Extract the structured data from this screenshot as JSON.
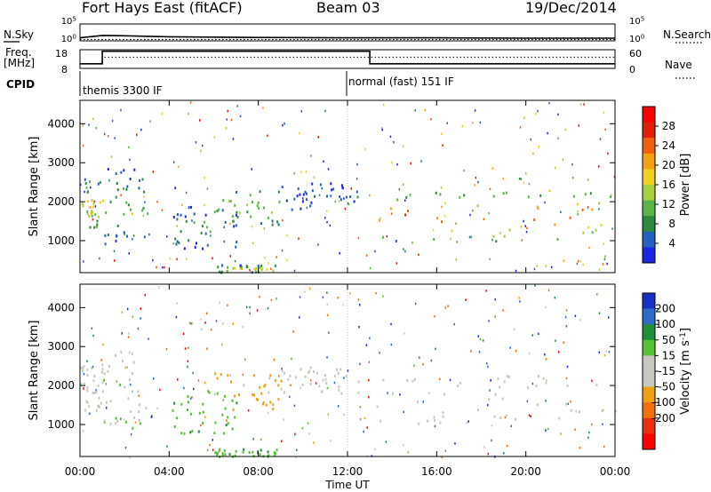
{
  "header": {
    "title": "Fort Hays East (fitACF)",
    "beam": "Beam 03",
    "date": "19/Dec/2014"
  },
  "chart_data": [
    {
      "type": "line",
      "name_left": "N.Sky",
      "name_right": "N.Search",
      "y_left_ticks": [
        "10^5",
        "10^0"
      ],
      "y_right_ticks": [
        "10^5",
        "10^0"
      ],
      "series": [
        {
          "name": "N.Sky",
          "style": "solid",
          "x_hours": [
            0,
            1,
            2,
            4,
            8,
            12,
            16,
            20,
            24
          ],
          "values_log10": [
            0.9,
            1.6,
            1.5,
            1.2,
            1.0,
            0.9,
            0.9,
            0.8,
            0.8
          ]
        },
        {
          "name": "N.Search",
          "style": "dotted",
          "x_hours": [
            0,
            24
          ],
          "values_log10": [
            0.4,
            0.4
          ]
        }
      ]
    },
    {
      "type": "line",
      "name_left": "Freq.",
      "unit_left": "[MHz]",
      "name_right": "Nave",
      "y_left_ticks": [
        18,
        8
      ],
      "y_right_ticks": [
        60,
        0
      ],
      "series": [
        {
          "name": "Freq.",
          "style": "solid",
          "x_hours": [
            0,
            1.0,
            1.0,
            13.0,
            13.0,
            24
          ],
          "values": [
            10.5,
            10.5,
            17.2,
            17.2,
            10.5,
            10.5
          ]
        },
        {
          "name": "Nave",
          "style": "dotted",
          "x_hours": [
            0,
            1.0,
            1.0,
            24
          ],
          "values": [
            18,
            18,
            14,
            14
          ]
        }
      ]
    },
    {
      "type": "table",
      "label": "CPID",
      "segments": [
        {
          "start_hour": 0,
          "label": "themis 3300 IF"
        },
        {
          "start_hour": 12,
          "label": "normal (fast) 151 IF"
        }
      ]
    },
    {
      "type": "heatmap",
      "ylabel": "Slant Range [km]",
      "ylim": [
        180,
        4600
      ],
      "y_ticks": [
        1000,
        2000,
        3000,
        4000
      ],
      "colorbar_label": "Power [dB]",
      "colorbar_ticks": [
        4,
        8,
        12,
        16,
        20,
        24,
        28
      ],
      "colorbar_range": [
        0,
        32
      ],
      "colorscale": [
        "#1c28e0",
        "#2460c0",
        "#2e8a3c",
        "#5cb448",
        "#a6d040",
        "#f0d020",
        "#f5a012",
        "#f06010",
        "#e02008",
        "#ff0000"
      ],
      "echo_regions": [
        {
          "h0": 0.0,
          "h1": 1.0,
          "r0": 1300,
          "r1": 2600,
          "value": 16
        },
        {
          "h0": 1.0,
          "h1": 3.0,
          "r0": 900,
          "r1": 2900,
          "value": 10
        },
        {
          "h0": 4.0,
          "h1": 7.0,
          "r0": 800,
          "r1": 1900,
          "value": 8
        },
        {
          "h0": 6.0,
          "h1": 9.0,
          "r0": 1400,
          "r1": 2400,
          "value": 12
        },
        {
          "h0": 6.0,
          "h1": 9.0,
          "r0": 200,
          "r1": 400,
          "value": 16
        },
        {
          "h0": 9.0,
          "h1": 12.5,
          "r0": 1800,
          "r1": 2500,
          "value": 4
        },
        {
          "h0": 13.0,
          "h1": 24.0,
          "r0": 1000,
          "r1": 2300,
          "value": 22
        }
      ]
    },
    {
      "type": "heatmap",
      "ylabel": "Slant Range [km]",
      "xlabel": "Time UT",
      "ylim": [
        180,
        4600
      ],
      "y_ticks": [
        1000,
        2000,
        3000,
        4000
      ],
      "x_ticks": [
        "00:00",
        "04:00",
        "08:00",
        "12:00",
        "16:00",
        "20:00",
        "00:00"
      ],
      "colorbar_label": "Velocity [m s^-1]",
      "colorbar_ticks": [
        200,
        100,
        50,
        15,
        -15,
        -50,
        -100,
        -200
      ],
      "colorscale": [
        "#1830c8",
        "#2a6cc8",
        "#1f8f3a",
        "#55c030",
        "#c8c8c0",
        "#c8c8c0",
        "#f0a010",
        "#f07010",
        "#e83010",
        "#ff0000"
      ],
      "echo_regions": [
        {
          "h0": 0.0,
          "h1": 1.0,
          "r0": 1300,
          "r1": 2600,
          "value": 0
        },
        {
          "h0": 1.0,
          "h1": 3.0,
          "r0": 900,
          "r1": 2900,
          "value": 10
        },
        {
          "h0": 4.0,
          "h1": 7.0,
          "r0": 800,
          "r1": 1900,
          "value": 40
        },
        {
          "h0": 6.0,
          "h1": 9.0,
          "r0": 1400,
          "r1": 2400,
          "value": -60
        },
        {
          "h0": 6.0,
          "h1": 9.0,
          "r0": 200,
          "r1": 400,
          "value": 40
        },
        {
          "h0": 9.0,
          "h1": 12.5,
          "r0": 1800,
          "r1": 2500,
          "value": 0
        },
        {
          "h0": 13.0,
          "h1": 24.0,
          "r0": 1000,
          "r1": 2300,
          "value": 0
        }
      ]
    }
  ]
}
